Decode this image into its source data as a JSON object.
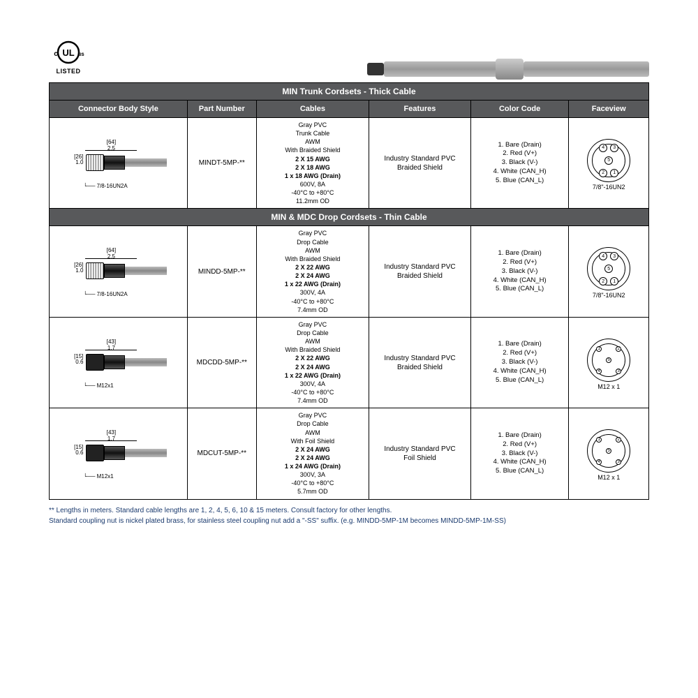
{
  "header": {
    "ul_listed": "LISTED",
    "ul_c": "c",
    "ul_us": "us"
  },
  "columns": {
    "body_style": "Connector Body Style",
    "part_number": "Part Number",
    "cables": "Cables",
    "features": "Features",
    "color_code": "Color Code",
    "faceview": "Faceview"
  },
  "sections": [
    {
      "title": "MIN Trunk Cordsets - Thick Cable"
    },
    {
      "title": "MIN & MDC Drop Cordsets - Thin Cable"
    }
  ],
  "rows": [
    {
      "dim_mm": "[64]",
      "dim_in": "2.5",
      "dim_h_mm": "[26]",
      "dim_h_in": "1.0",
      "thread": "7/8-16UN2A",
      "nut_dark": false,
      "part_number": "MINDT-5MP-**",
      "cables": [
        "Gray PVC",
        "Trunk Cable",
        "AWM",
        "With Braided Shield",
        "<b>2 X 15 AWG</b>",
        "<b>2 X 18 AWG</b>",
        "<b>1 x 18 AWG (Drain)</b>",
        "600V, 8A",
        "-40°C to +80°C",
        "11.2mm OD"
      ],
      "features": "Industry Standard PVC\nBraided Shield",
      "color_code": [
        "1. Bare (Drain)",
        "2. Red (V+)",
        "3. Black (V-)",
        "4. White (CAN_H)",
        "5. Blue (CAN_L)"
      ],
      "face_type": "min",
      "face_label": "7/8\"-16UN2"
    },
    {
      "dim_mm": "[64]",
      "dim_in": "2.5",
      "dim_h_mm": "[26]",
      "dim_h_in": "1.0",
      "thread": "7/8-16UN2A",
      "nut_dark": false,
      "part_number": "MINDD-5MP-**",
      "cables": [
        "Gray PVC",
        "Drop Cable",
        "AWM",
        "With Braided Shield",
        "<b>2 X 22 AWG</b>",
        "<b>2 X 24 AWG</b>",
        "<b>1 x 22 AWG (Drain)</b>",
        "300V, 4A",
        "-40°C to +80°C",
        "7.4mm OD"
      ],
      "features": "Industry Standard PVC\nBraided Shield",
      "color_code": [
        "1. Bare (Drain)",
        "2. Red (V+)",
        "3. Black (V-)",
        "4. White (CAN_H)",
        "5. Blue (CAN_L)"
      ],
      "face_type": "min",
      "face_label": "7/8\"-16UN2"
    },
    {
      "dim_mm": "[43]",
      "dim_in": "1.7",
      "dim_h_mm": "[15]",
      "dim_h_in": "0.6",
      "thread": "M12x1",
      "nut_dark": true,
      "part_number": "MDCDD-5MP-**",
      "cables": [
        "Gray PVC",
        "Drop Cable",
        "AWM",
        "With Braided Shield",
        "<b>2 X 22 AWG</b>",
        "<b>2 X 24 AWG</b>",
        "<b>1 x 22 AWG (Drain)</b>",
        "300V, 4A",
        "-40°C to +80°C",
        "7.4mm OD"
      ],
      "features": "Industry Standard PVC\nBraided Shield",
      "color_code": [
        "1. Bare (Drain)",
        "2. Red (V+)",
        "3. Black (V-)",
        "4. White (CAN_H)",
        "5. Blue (CAN_L)"
      ],
      "face_type": "m12",
      "face_label": "M12 x 1"
    },
    {
      "dim_mm": "[43]",
      "dim_in": "1.7",
      "dim_h_mm": "[15]",
      "dim_h_in": "0.6",
      "thread": "M12x1",
      "nut_dark": true,
      "part_number": "MDCUT-5MP-**",
      "cables": [
        "Gray PVC",
        "Drop Cable",
        "AWM",
        "With Foil Shield",
        "<b>2 X 24 AWG</b>",
        "<b>2 X 24 AWG</b>",
        "<b>1 x 24 AWG (Drain)</b>",
        "300V, 3A",
        "-40°C to +80°C",
        "5.7mm OD"
      ],
      "features": "Industry Standard PVC\nFoil Shield",
      "color_code": [
        "1. Bare (Drain)",
        "2. Red (V+)",
        "3. Black (V-)",
        "4. White (CAN_H)",
        "5. Blue (CAN_L)"
      ],
      "face_type": "m12",
      "face_label": "M12 x 1"
    }
  ],
  "footnotes": [
    "** Lengths in meters.  Standard cable lengths are 1, 2, 4, 5, 6, 10 & 15 meters. Consult factory for other lengths.",
    "Standard coupling nut is nickel plated brass, for stainless steel coupling nut add a \"-SS\" suffix. (e.g. MINDD-5MP-1M becomes MINDD-5MP-1M-SS)"
  ],
  "colors": {
    "header_bg": "#58595b",
    "header_fg": "#ffffff",
    "border": "#000000",
    "footnote": "#1a3a6e"
  }
}
